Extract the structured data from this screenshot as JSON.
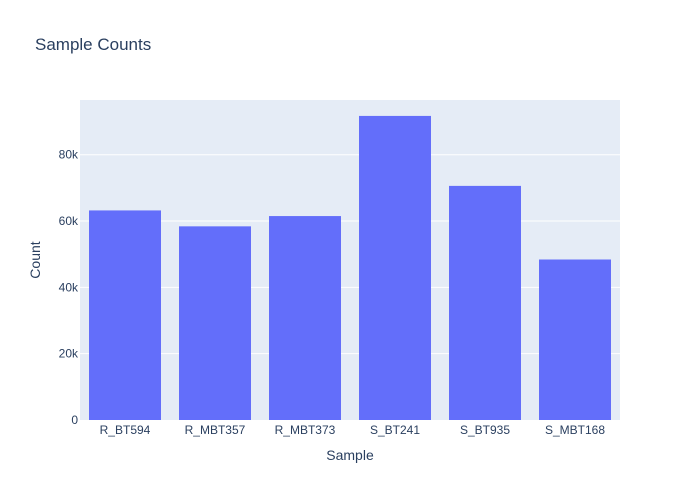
{
  "chart_data": {
    "type": "bar",
    "title": "Sample Counts",
    "xlabel": "Sample",
    "ylabel": "Count",
    "categories": [
      "R_BT594",
      "R_MBT357",
      "R_MBT373",
      "S_BT241",
      "S_BT935",
      "S_MBT168"
    ],
    "values": [
      63200,
      58400,
      61500,
      91700,
      70600,
      48400
    ],
    "ylim": [
      0,
      96500
    ],
    "yticks": [
      0,
      20000,
      40000,
      60000,
      80000
    ],
    "ytick_labels": [
      "0",
      "20k",
      "40k",
      "60k",
      "80k"
    ],
    "grid": true,
    "legend": false,
    "colors": {
      "bar": "#636efa",
      "plot_background": "#e5ecf6",
      "grid": "#ffffff",
      "text": "#2a3f5f"
    }
  }
}
